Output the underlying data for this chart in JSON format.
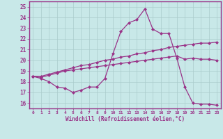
{
  "xlabel": "Windchill (Refroidissement éolien,°C)",
  "bg_color": "#c8e8e8",
  "line_color": "#993388",
  "grid_color": "#aacccc",
  "label_color": "#993388",
  "xlim": [
    -0.5,
    23.5
  ],
  "ylim": [
    15.5,
    25.5
  ],
  "xticks": [
    0,
    1,
    2,
    3,
    4,
    5,
    6,
    7,
    8,
    9,
    10,
    11,
    12,
    13,
    14,
    15,
    16,
    17,
    18,
    19,
    20,
    21,
    22,
    23
  ],
  "yticks": [
    16,
    17,
    18,
    19,
    20,
    21,
    22,
    23,
    24,
    25
  ],
  "line1_x": [
    0,
    1,
    2,
    3,
    4,
    5,
    6,
    7,
    8,
    9,
    10,
    11,
    12,
    13,
    14,
    15,
    16,
    17,
    18,
    19,
    20,
    21,
    22,
    23
  ],
  "line1_y": [
    18.5,
    18.3,
    18.0,
    17.5,
    17.4,
    17.0,
    17.2,
    17.5,
    17.5,
    18.3,
    20.6,
    22.7,
    23.5,
    23.8,
    24.8,
    22.9,
    22.5,
    22.5,
    20.2,
    17.5,
    16.0,
    15.9,
    15.9,
    15.8
  ],
  "line2_x": [
    0,
    1,
    2,
    3,
    4,
    5,
    6,
    7,
    8,
    9,
    10,
    11,
    12,
    13,
    14,
    15,
    16,
    17,
    18,
    19,
    20,
    21,
    22,
    23
  ],
  "line2_y": [
    18.5,
    18.5,
    18.7,
    18.9,
    19.1,
    19.3,
    19.5,
    19.6,
    19.8,
    20.0,
    20.1,
    20.3,
    20.4,
    20.6,
    20.7,
    20.9,
    21.0,
    21.2,
    21.3,
    21.4,
    21.5,
    21.6,
    21.6,
    21.7
  ],
  "line3_x": [
    0,
    1,
    2,
    3,
    4,
    5,
    6,
    7,
    8,
    9,
    10,
    11,
    12,
    13,
    14,
    15,
    16,
    17,
    18,
    19,
    20,
    21,
    22,
    23
  ],
  "line3_y": [
    18.5,
    18.4,
    18.6,
    18.8,
    19.0,
    19.1,
    19.2,
    19.3,
    19.4,
    19.5,
    19.6,
    19.7,
    19.8,
    19.9,
    20.0,
    20.1,
    20.2,
    20.3,
    20.4,
    20.1,
    20.2,
    20.1,
    20.1,
    20.0
  ]
}
